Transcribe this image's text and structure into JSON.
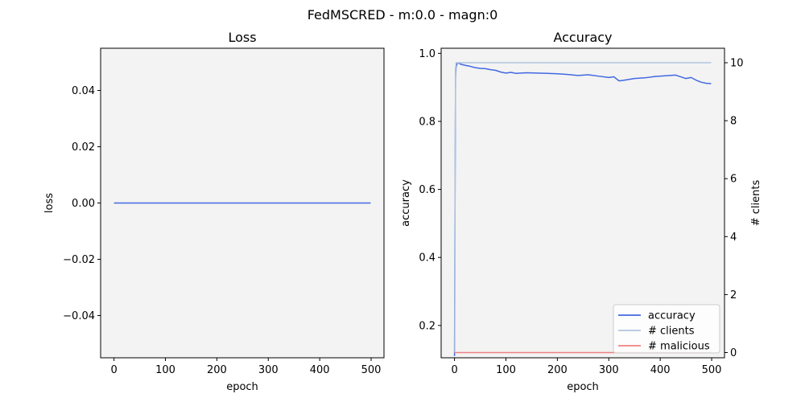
{
  "figure": {
    "title": "FedMSCRED - m:0.0 - magn:0"
  },
  "chart_data": [
    {
      "type": "line",
      "title": "Loss",
      "xlabel": "epoch",
      "ylabel": "loss",
      "xlim": [
        -26,
        525
      ],
      "ylim": [
        -0.055,
        0.055
      ],
      "xticks": [
        0,
        100,
        200,
        300,
        400,
        500
      ],
      "yticks": [
        -0.04,
        -0.02,
        0.0,
        0.02,
        0.04
      ],
      "ytick_labels": [
        "−0.04",
        "−0.02",
        "0.00",
        "0.02",
        "0.04"
      ],
      "background": "#f3f3f3",
      "series": [
        {
          "color": "#4169e1",
          "x": [
            0,
            499
          ],
          "y": [
            0,
            0
          ]
        }
      ]
    },
    {
      "type": "line",
      "title": "Accuracy",
      "xlabel": "epoch",
      "ylabel": "accuracy",
      "y2label": "# clients",
      "xlim": [
        -26,
        525
      ],
      "ylim": [
        0.105,
        1.015
      ],
      "y2lim": [
        -0.18,
        10.5
      ],
      "xticks": [
        0,
        100,
        200,
        300,
        400,
        500
      ],
      "yticks": [
        0.2,
        0.4,
        0.6,
        0.8,
        1.0
      ],
      "ytick_labels": [
        "0.2",
        "0.4",
        "0.6",
        "0.8",
        "1.0"
      ],
      "y2ticks": [
        0,
        2,
        4,
        6,
        8,
        10
      ],
      "y2tick_labels": [
        "0",
        "2",
        "4",
        "6",
        "8",
        "10"
      ],
      "background": "#f3f3f3",
      "legend_position": "bottom-right",
      "series": [
        {
          "name": "accuracy",
          "color": "#4169e1",
          "axis": "left",
          "x": [
            0,
            1,
            2,
            3,
            5,
            8,
            12,
            20,
            30,
            40,
            50,
            60,
            70,
            80,
            90,
            100,
            110,
            120,
            140,
            160,
            180,
            200,
            220,
            240,
            260,
            280,
            300,
            310,
            320,
            330,
            350,
            370,
            390,
            410,
            430,
            440,
            450,
            460,
            470,
            480,
            490,
            499
          ],
          "y": [
            0.11,
            0.55,
            0.93,
            0.96,
            0.97,
            0.972,
            0.968,
            0.965,
            0.962,
            0.958,
            0.956,
            0.955,
            0.952,
            0.95,
            0.945,
            0.942,
            0.944,
            0.941,
            0.943,
            0.942,
            0.941,
            0.94,
            0.938,
            0.935,
            0.937,
            0.933,
            0.929,
            0.931,
            0.919,
            0.921,
            0.926,
            0.928,
            0.932,
            0.934,
            0.936,
            0.931,
            0.926,
            0.929,
            0.921,
            0.915,
            0.912,
            0.911
          ]
        },
        {
          "name": "# clients",
          "color": "#b0c4de",
          "axis": "right",
          "x": [
            0,
            0.5,
            1,
            2,
            3,
            499
          ],
          "y": [
            0,
            0,
            6,
            9.8,
            10,
            10
          ]
        },
        {
          "name": "# malicious",
          "color": "#f08080",
          "axis": "right",
          "x": [
            0,
            499
          ],
          "y": [
            0,
            0
          ]
        }
      ]
    }
  ]
}
